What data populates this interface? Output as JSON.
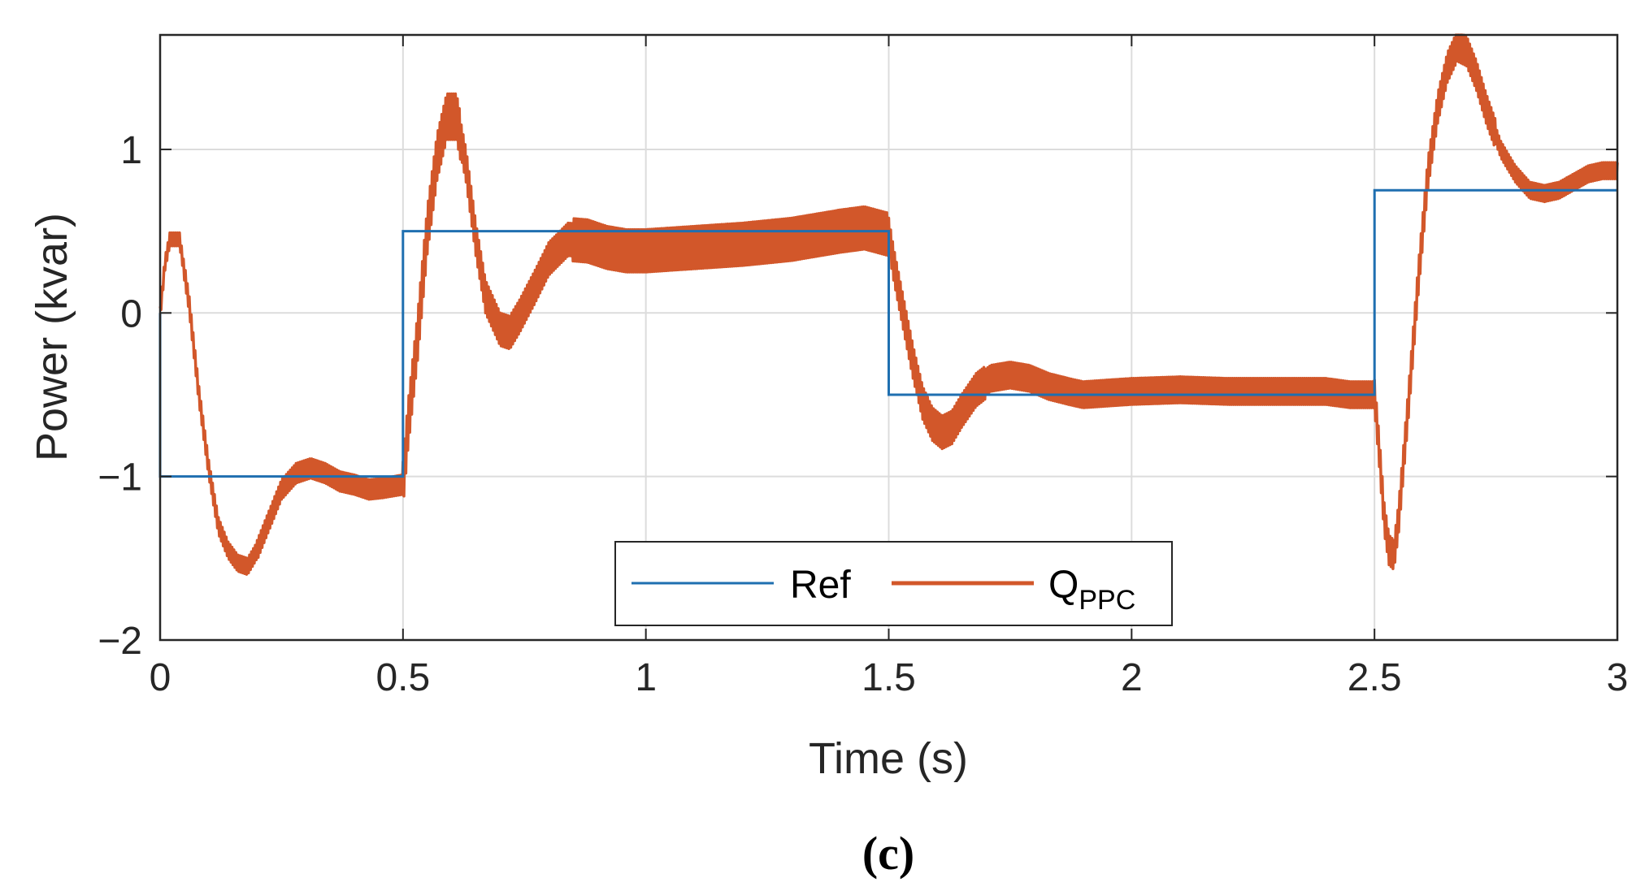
{
  "chart_data": {
    "type": "line",
    "title": "",
    "xlabel": "Time (s)",
    "ylabel": "Power (kvar)",
    "xlim": [
      0,
      3
    ],
    "ylim": [
      -2,
      1.7
    ],
    "xticks": [
      0,
      0.5,
      1,
      1.5,
      2,
      2.5,
      3
    ],
    "xtick_labels": [
      "0",
      "0.5",
      "1",
      "1.5",
      "2",
      "2.5",
      "3"
    ],
    "yticks": [
      -2,
      -1,
      0,
      1
    ],
    "ytick_labels": [
      "−2",
      "−1",
      "0",
      "1"
    ],
    "grid": true,
    "legend_position": "bottom-center",
    "caption": "(c)",
    "colors": {
      "ref": "#1f6fb0",
      "qppc": "#d2572a",
      "grid": "#dcdcdc",
      "axis": "#262626"
    },
    "series": [
      {
        "name": "Ref",
        "label": "Ref",
        "style": "step",
        "x": [
          0,
          0,
          0.5,
          0.5,
          1.5,
          1.5,
          2.5,
          2.5,
          3
        ],
        "y": [
          0,
          -1,
          -1,
          0.5,
          0.5,
          -0.5,
          -0.5,
          0.75,
          0.75
        ]
      },
      {
        "name": "Q_PPC",
        "label_main": "Q",
        "label_sub": "PPC",
        "style": "line_with_ripple",
        "x": [
          0,
          0.01,
          0.02,
          0.04,
          0.06,
          0.08,
          0.1,
          0.12,
          0.14,
          0.16,
          0.18,
          0.2,
          0.22,
          0.25,
          0.28,
          0.31,
          0.34,
          0.37,
          0.4,
          0.43,
          0.46,
          0.5,
          0.51,
          0.53,
          0.55,
          0.57,
          0.59,
          0.61,
          0.63,
          0.65,
          0.67,
          0.7,
          0.72,
          0.74,
          0.77,
          0.8,
          0.84,
          0.88,
          0.92,
          0.96,
          1.0,
          1.1,
          1.2,
          1.3,
          1.4,
          1.45,
          1.5,
          1.51,
          1.53,
          1.55,
          1.57,
          1.59,
          1.61,
          1.63,
          1.65,
          1.68,
          1.71,
          1.75,
          1.79,
          1.83,
          1.87,
          1.9,
          2.0,
          2.1,
          2.2,
          2.3,
          2.4,
          2.45,
          2.5,
          2.51,
          2.52,
          2.53,
          2.54,
          2.55,
          2.57,
          2.59,
          2.61,
          2.63,
          2.65,
          2.67,
          2.69,
          2.71,
          2.73,
          2.76,
          2.79,
          2.82,
          2.85,
          2.88,
          2.91,
          2.94,
          2.97,
          3.0
        ],
        "y": [
          0,
          0.3,
          0.45,
          0.45,
          0.05,
          -0.5,
          -0.95,
          -1.3,
          -1.45,
          -1.53,
          -1.55,
          -1.45,
          -1.3,
          -1.08,
          -0.98,
          -0.95,
          -0.98,
          -1.03,
          -1.05,
          -1.08,
          -1.07,
          -1.05,
          -0.7,
          -0.15,
          0.5,
          0.95,
          1.2,
          1.2,
          0.9,
          0.45,
          0.1,
          -0.1,
          -0.12,
          -0.02,
          0.15,
          0.33,
          0.45,
          0.44,
          0.4,
          0.38,
          0.38,
          0.4,
          0.42,
          0.45,
          0.5,
          0.52,
          0.48,
          0.3,
          0.0,
          -0.3,
          -0.55,
          -0.68,
          -0.73,
          -0.7,
          -0.6,
          -0.47,
          -0.4,
          -0.38,
          -0.4,
          -0.45,
          -0.48,
          -0.5,
          -0.48,
          -0.47,
          -0.48,
          -0.48,
          -0.48,
          -0.5,
          -0.5,
          -0.85,
          -1.25,
          -1.45,
          -1.48,
          -1.25,
          -0.55,
          0.2,
          0.85,
          1.25,
          1.5,
          1.63,
          1.6,
          1.45,
          1.25,
          1.0,
          0.85,
          0.75,
          0.73,
          0.75,
          0.8,
          0.85,
          0.87,
          0.87
        ]
      }
    ]
  }
}
